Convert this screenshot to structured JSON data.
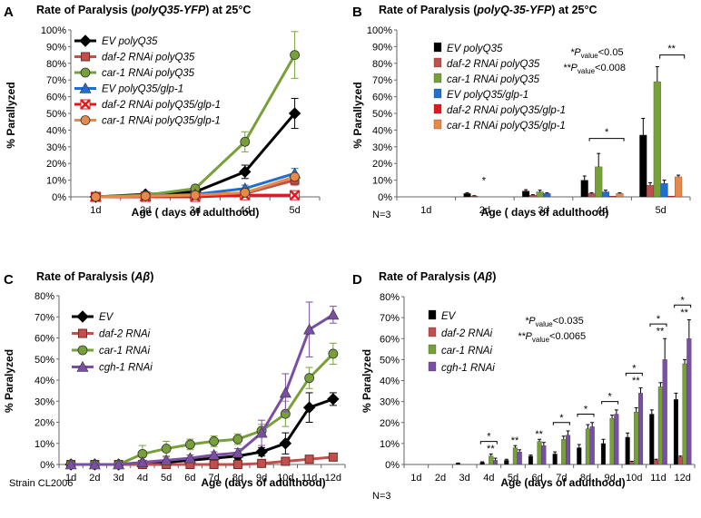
{
  "colors": {
    "EV": "#000000",
    "daf2": "#c0504d",
    "car1": "#77a03b",
    "glp1": "#1f6fd1",
    "daf2glp1": "#e2181a",
    "car1glp1": "#e88a45",
    "cgh1": "#7a4fa3"
  },
  "chart_data": [
    {
      "panel": "A",
      "type": "line",
      "title": "Rate of Paralysis  (polyQ35-YFP) at 25°C",
      "xlabel": "Age ( days of adulthood)",
      "ylabel": "% Parallyzed",
      "ylim": [
        0,
        100
      ],
      "yticks": [
        "0%",
        "10%",
        "20%",
        "30%",
        "40%",
        "50%",
        "60%",
        "70%",
        "80%",
        "90%",
        "100%"
      ],
      "categories": [
        "1d",
        "2d",
        "3d",
        "4d",
        "5d"
      ],
      "series": [
        {
          "name": "EV polyQ35",
          "color": "#000000",
          "marker": "diamond",
          "values": [
            0,
            1.5,
            3,
            15,
            50
          ],
          "err": [
            0,
            1.5,
            2,
            4,
            9
          ]
        },
        {
          "name": "daf-2 RNAi polyQ35",
          "color": "#c0504d",
          "marker": "square",
          "values": [
            0,
            0.5,
            1,
            2,
            10
          ],
          "err": [
            0,
            0.5,
            0.5,
            1,
            3
          ]
        },
        {
          "name": "car-1 RNAi polyQ35",
          "color": "#77a03b",
          "marker": "circle",
          "values": [
            0,
            1,
            5,
            33,
            85
          ],
          "err": [
            0,
            1,
            2,
            6,
            14
          ]
        },
        {
          "name": "EV polyQ35/glp-1",
          "color": "#1f6fd1",
          "marker": "triangle",
          "values": [
            0,
            0.5,
            1.5,
            5,
            14
          ],
          "err": [
            0,
            0.5,
            1,
            2,
            3
          ]
        },
        {
          "name": "daf-2 RNAi polyQ35/glp-1",
          "color": "#e2181a",
          "marker": "x",
          "values": [
            0,
            0,
            0,
            1,
            1
          ],
          "err": [
            0,
            0,
            0,
            0,
            0
          ]
        },
        {
          "name": "car-1 RNAi polyQ35/glp-1",
          "color": "#e88a45",
          "marker": "circle",
          "values": [
            0,
            0.5,
            1,
            2.5,
            12
          ],
          "err": [
            0,
            0.5,
            0.5,
            1,
            2
          ]
        }
      ]
    },
    {
      "panel": "B",
      "type": "bar",
      "title": "Rate of Paralysis  (polyQ-35-YFP) at 25°C",
      "xlabel": "Age ( days of adulthood)",
      "ylabel": "% Parallyzed",
      "ylim": [
        0,
        100
      ],
      "yticks": [
        "0%",
        "10%",
        "20%",
        "30%",
        "40%",
        "50%",
        "60%",
        "70%",
        "80%",
        "90%",
        "100%"
      ],
      "categories": [
        "1d",
        "2d",
        "3d",
        "4d",
        "5d"
      ],
      "series": [
        {
          "name": "EV polyQ35",
          "color": "#000000",
          "values": [
            0,
            2,
            3.5,
            10,
            37
          ],
          "err": [
            0,
            0.5,
            0.8,
            2.5,
            10
          ]
        },
        {
          "name": "daf-2 RNAi polyQ35",
          "color": "#c0504d",
          "values": [
            0,
            0.5,
            1,
            2,
            7
          ],
          "err": [
            0,
            0.2,
            0.3,
            0.5,
            1.5
          ]
        },
        {
          "name": "car-1 RNAi polyQ35",
          "color": "#77a03b",
          "values": [
            0,
            0,
            3,
            18,
            69
          ],
          "err": [
            0,
            0,
            1,
            8,
            9
          ]
        },
        {
          "name": "EV polyQ35/glp-1",
          "color": "#1f6fd1",
          "values": [
            0,
            0,
            2,
            3,
            8
          ],
          "err": [
            0,
            0,
            0.5,
            1,
            2
          ]
        },
        {
          "name": "daf-2 RNAi polyQ35/glp-1",
          "color": "#e2181a",
          "values": [
            0,
            0,
            0,
            0.5,
            0.5
          ],
          "err": [
            0,
            0,
            0,
            0,
            0
          ]
        },
        {
          "name": "car-1 RNAi polyQ35/glp-1",
          "color": "#e88a45",
          "values": [
            0,
            0,
            0,
            2,
            12
          ],
          "err": [
            0,
            0,
            0,
            0.5,
            1
          ]
        }
      ],
      "pvalue_notes": [
        "*P",
        "value",
        "<0.05",
        "**P",
        "value",
        "<0.008"
      ],
      "annotations": [
        "*",
        "*",
        "**"
      ],
      "footnote": "N=3"
    },
    {
      "panel": "C",
      "type": "line",
      "title": "Rate of Paralysis (Aβ)",
      "xlabel": "Age (days of adulthood)",
      "ylabel": "% Paralyzed",
      "ylim": [
        0,
        80
      ],
      "yticks": [
        "0%",
        "10%",
        "20%",
        "30%",
        "40%",
        "50%",
        "60%",
        "70%",
        "80%"
      ],
      "categories": [
        "1d",
        "2d",
        "3d",
        "4d",
        "5d",
        "6d",
        "7d",
        "8d",
        "9d",
        "10d",
        "11d",
        "12d"
      ],
      "series": [
        {
          "name": "EV",
          "color": "#000000",
          "marker": "diamond",
          "values": [
            0,
            0,
            0,
            0.5,
            1,
            2,
            3,
            4,
            6,
            10,
            27,
            31
          ],
          "err": [
            0,
            0,
            0,
            0.5,
            0.5,
            1,
            1,
            1.5,
            2,
            5,
            7,
            3
          ]
        },
        {
          "name": "daf-2 RNAi",
          "color": "#c0504d",
          "marker": "square",
          "values": [
            0,
            0,
            0,
            0,
            0,
            0,
            0,
            0,
            0.5,
            1.5,
            2.5,
            3.5
          ],
          "err": [
            0,
            0,
            0,
            0,
            0,
            0,
            0,
            0,
            0.3,
            0.5,
            0.8,
            1
          ]
        },
        {
          "name": "car-1 RNAi",
          "color": "#77a03b",
          "marker": "circle",
          "values": [
            0,
            0,
            0,
            5,
            7.5,
            9.5,
            11,
            12,
            16,
            24,
            41,
            52.5
          ],
          "err": [
            0,
            0,
            0,
            4,
            3.5,
            2.5,
            2.5,
            2.5,
            3,
            6,
            5,
            5
          ]
        },
        {
          "name": "cgh-1 RNAi",
          "color": "#7a4fa3",
          "marker": "triangle",
          "values": [
            0,
            0,
            0,
            1,
            2,
            3,
            4.5,
            5.5,
            15,
            34,
            64,
            71
          ],
          "err": [
            0,
            0,
            0,
            1,
            1.5,
            1.5,
            1.5,
            2,
            6,
            9,
            13,
            4
          ]
        }
      ],
      "footnote": "Strain CL2006"
    },
    {
      "panel": "D",
      "type": "bar",
      "title": "Rate of Paralysis (Aβ)",
      "xlabel": "Age (days of adulthood)",
      "ylabel": "% Paralyzed",
      "ylim": [
        0,
        80
      ],
      "yticks": [
        "0%",
        "10%",
        "20%",
        "30%",
        "40%",
        "50%",
        "60%",
        "70%",
        "80%"
      ],
      "categories": [
        "1d",
        "2d",
        "3d",
        "4d",
        "5d",
        "6d",
        "7d",
        "8d",
        "9d",
        "10d",
        "11d",
        "12d"
      ],
      "series": [
        {
          "name": "EV",
          "color": "#000000",
          "values": [
            0,
            0,
            0.5,
            1,
            2,
            4,
            5,
            8,
            10,
            13,
            24,
            31
          ],
          "err": [
            0,
            0,
            0.2,
            0.3,
            0.5,
            0.5,
            1,
            1.5,
            2,
            2,
            2,
            3
          ]
        },
        {
          "name": "daf-2 RNAi",
          "color": "#c0504d",
          "values": [
            0,
            0,
            0,
            0,
            0,
            0,
            0,
            0,
            0,
            1,
            2,
            3.5
          ],
          "err": [
            0,
            0,
            0,
            0,
            0,
            0,
            0,
            0,
            0,
            0.5,
            0.5,
            0.5
          ]
        },
        {
          "name": "car-1 RNAi",
          "color": "#77a03b",
          "values": [
            0,
            0,
            0,
            4,
            8,
            11,
            12,
            17,
            22,
            25,
            37,
            48
          ],
          "err": [
            0,
            0,
            0,
            1,
            1,
            1,
            1.5,
            2,
            1.5,
            2,
            2,
            2
          ]
        },
        {
          "name": "cgh-1 RNAi",
          "color": "#7a4fa3",
          "values": [
            0,
            0,
            0,
            2,
            6,
            9,
            14,
            18,
            24,
            34,
            50,
            60
          ],
          "err": [
            0,
            0,
            0,
            1,
            1,
            1.5,
            2,
            2,
            2,
            2.5,
            10,
            9
          ]
        }
      ],
      "pvalue_notes": [
        "*P",
        "value",
        "<0.035",
        "**P",
        "value",
        "<0.0065"
      ],
      "annotations": [
        "*",
        "**",
        "**",
        "**",
        "*",
        "*",
        "*",
        "**",
        "*",
        "**",
        "*",
        "**",
        "*",
        "**"
      ],
      "footnote": "N=3"
    }
  ]
}
